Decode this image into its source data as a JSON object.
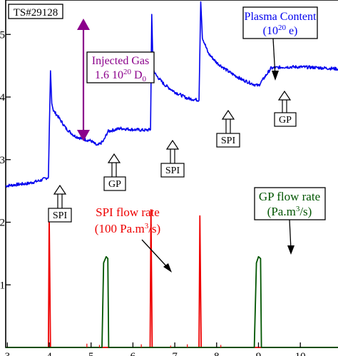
{
  "chart_data": {
    "type": "line",
    "shot_label": "TS#29128",
    "x_ticks": [
      3,
      4,
      5,
      6,
      7,
      8,
      9,
      10
    ],
    "y_ticks": [
      1,
      2,
      3,
      4,
      5
    ],
    "xlim": [
      2.96,
      10.9
    ],
    "ylim": [
      0,
      5.55
    ],
    "grid": false,
    "series": [
      {
        "name": "Plasma Content (10^20 e)",
        "color": "#0000ee",
        "points": [
          [
            2.96,
            2.58
          ],
          [
            3.2,
            2.6
          ],
          [
            3.5,
            2.62
          ],
          [
            3.8,
            2.67
          ],
          [
            3.98,
            2.72
          ],
          [
            4.03,
            4.42
          ],
          [
            4.06,
            3.9
          ],
          [
            4.1,
            3.78
          ],
          [
            4.2,
            3.7
          ],
          [
            4.4,
            3.5
          ],
          [
            4.6,
            3.38
          ],
          [
            4.8,
            3.33
          ],
          [
            5.0,
            3.3
          ],
          [
            5.15,
            3.22
          ],
          [
            5.3,
            3.3
          ],
          [
            5.4,
            3.45
          ],
          [
            5.7,
            3.5
          ],
          [
            6.0,
            3.48
          ],
          [
            6.3,
            3.47
          ],
          [
            6.42,
            3.48
          ],
          [
            6.45,
            5.32
          ],
          [
            6.48,
            4.45
          ],
          [
            6.55,
            4.35
          ],
          [
            6.75,
            4.2
          ],
          [
            7.0,
            4.08
          ],
          [
            7.3,
            3.98
          ],
          [
            7.58,
            3.95
          ],
          [
            7.62,
            5.52
          ],
          [
            7.66,
            4.95
          ],
          [
            7.8,
            4.7
          ],
          [
            8.0,
            4.55
          ],
          [
            8.3,
            4.4
          ],
          [
            8.6,
            4.28
          ],
          [
            8.9,
            4.2
          ],
          [
            9.0,
            4.18
          ],
          [
            9.15,
            4.32
          ],
          [
            9.3,
            4.46
          ],
          [
            9.6,
            4.48
          ],
          [
            10.0,
            4.48
          ],
          [
            10.4,
            4.47
          ],
          [
            10.9,
            4.45
          ]
        ]
      },
      {
        "name": "SPI flow rate (100 Pa.m^3/s)",
        "color": "#ee0000",
        "points": [
          [
            2.96,
            0
          ],
          [
            3.98,
            0
          ],
          [
            4.0,
            2.1
          ],
          [
            4.03,
            0
          ],
          [
            5.9,
            0
          ],
          [
            6.41,
            0
          ],
          [
            6.43,
            2.2
          ],
          [
            6.46,
            0
          ],
          [
            7.58,
            0
          ],
          [
            7.6,
            2.1
          ],
          [
            7.63,
            0
          ],
          [
            10.9,
            0
          ]
        ]
      },
      {
        "name": "GP flow rate (Pa.m^3/s)",
        "color": "#005500",
        "points": [
          [
            2.96,
            0
          ],
          [
            5.26,
            0
          ],
          [
            5.3,
            1.35
          ],
          [
            5.36,
            1.45
          ],
          [
            5.4,
            1.42
          ],
          [
            5.42,
            0
          ],
          [
            8.9,
            0
          ],
          [
            8.95,
            1.35
          ],
          [
            9.0,
            1.45
          ],
          [
            9.05,
            1.42
          ],
          [
            9.07,
            0
          ],
          [
            10.9,
            0
          ]
        ]
      }
    ],
    "annotations": {
      "plasma_line1": "Plasma Content",
      "plasma_line2": "(10",
      "plasma_exp": "20",
      "plasma_unit": " e)",
      "gas_line1": "Injected Gas",
      "gas_line2": "1.6 10",
      "gas_exp": "20",
      "gas_unit": " D",
      "gas_sub": "0",
      "spi_flow_line1": "SPI flow rate",
      "spi_flow_line2": "(100 Pa.m",
      "spi_flow_sup": "3",
      "spi_flow_unit": "/s)",
      "gp_flow_line1": "GP flow rate",
      "gp_flow_line2": "(Pa.m",
      "gp_flow_sup": "3",
      "gp_flow_unit": "/s)",
      "event_spi": "SPI",
      "event_gp": "GP"
    },
    "colors": {
      "plasma": "#0000ee",
      "spi_flow": "#ee0000",
      "gp_flow": "#005500",
      "injected_gas": "#8b008b",
      "frame": "#000000"
    }
  }
}
